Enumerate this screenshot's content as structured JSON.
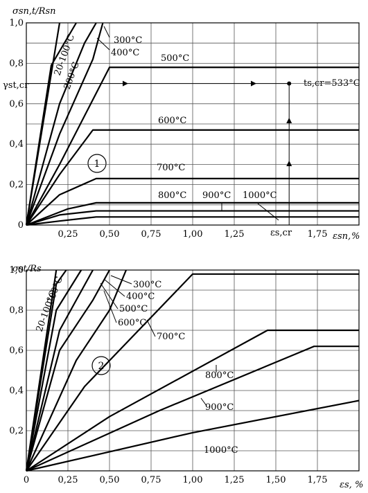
{
  "chart_data": [
    {
      "type": "line",
      "ylabel": "σsn,t/Rsn",
      "xlabel_prefix": "εsn,",
      "xlabel_unit": "%",
      "panel_label": "1",
      "xlim": [
        0,
        2.0
      ],
      "ylim": [
        0,
        1.0
      ],
      "x_ticks": [
        0.25,
        0.5,
        0.75,
        1.0,
        1.25,
        1.75
      ],
      "x_tick_labels": [
        "0,25",
        "0,50",
        "0,75",
        "1,00",
        "1,25",
        "1,75"
      ],
      "x_special_label": "εs,cr",
      "x_special_value": 1.5,
      "y_ticks": [
        0,
        0.2,
        0.4,
        0.6,
        0.8,
        1.0
      ],
      "y_tick_labels": [
        "0",
        "0,2",
        "0,4",
        "0,6",
        "0,8",
        "1,0"
      ],
      "y_special_label": "γst,cr",
      "y_special_value": 0.7,
      "critical_point_label": "ts,cr=533°C",
      "critical_point": [
        1.58,
        0.7
      ],
      "series": [
        {
          "name": "20-100°C",
          "x": [
            0,
            0.2
          ],
          "y": [
            0,
            1.0
          ]
        },
        {
          "name": "200°C",
          "x": [
            0,
            0.15,
            0.3
          ],
          "y": [
            0,
            0.79,
            1.0
          ]
        },
        {
          "name": "300°C",
          "x": [
            0,
            0.2,
            0.35,
            0.42
          ],
          "y": [
            0,
            0.6,
            0.9,
            1.0
          ]
        },
        {
          "name": "400°C",
          "x": [
            0,
            0.2,
            0.4,
            0.46
          ],
          "y": [
            0,
            0.45,
            0.82,
            1.0
          ]
        },
        {
          "name": "500°C",
          "x": [
            0,
            0.2,
            0.5,
            2.0
          ],
          "y": [
            0,
            0.3,
            0.78,
            0.78
          ]
        },
        {
          "name": "600°C",
          "x": [
            0,
            0.2,
            0.4,
            2.0
          ],
          "y": [
            0,
            0.25,
            0.47,
            0.47
          ]
        },
        {
          "name": "700°C",
          "x": [
            0,
            0.2,
            0.42,
            2.0
          ],
          "y": [
            0,
            0.15,
            0.23,
            0.23
          ]
        },
        {
          "name": "800°C",
          "x": [
            0,
            0.25,
            0.42,
            2.0
          ],
          "y": [
            0,
            0.08,
            0.11,
            0.11
          ]
        },
        {
          "name": "900°C",
          "x": [
            0,
            0.2,
            0.42,
            2.0
          ],
          "y": [
            0,
            0.05,
            0.07,
            0.07
          ]
        },
        {
          "name": "1000°C",
          "x": [
            0,
            0.2,
            0.42,
            2.0
          ],
          "y": [
            0,
            0.02,
            0.04,
            0.04
          ]
        }
      ]
    },
    {
      "type": "line",
      "ylabel": "σst/Rs",
      "xlabel_prefix": "εs,",
      "xlabel_unit": "%",
      "panel_label": "2",
      "xlim": [
        0,
        2.0
      ],
      "ylim": [
        0,
        1.0
      ],
      "x_ticks": [
        0,
        0.25,
        0.5,
        0.75,
        1.0,
        1.25,
        1.5,
        1.75
      ],
      "x_tick_labels": [
        "0",
        "0,25",
        "0,50",
        "0,75",
        "1,00",
        "1,25",
        "1,50",
        "1,75"
      ],
      "y_ticks": [
        0.2,
        0.4,
        0.6,
        0.8,
        1.0
      ],
      "y_tick_labels": [
        "0,2",
        "0,4",
        "0,6",
        "0,8",
        "1,0"
      ],
      "series": [
        {
          "name": "20-100°C",
          "x": [
            0,
            0.18
          ],
          "y": [
            0,
            1.0
          ]
        },
        {
          "name": "200°C",
          "x": [
            0,
            0.18,
            0.24
          ],
          "y": [
            0,
            0.93,
            1.0
          ]
        },
        {
          "name": "300°C",
          "x": [
            0,
            0.18,
            0.33
          ],
          "y": [
            0,
            0.8,
            1.0
          ]
        },
        {
          "name": "400°C",
          "x": [
            0,
            0.2,
            0.4
          ],
          "y": [
            0,
            0.7,
            1.0
          ]
        },
        {
          "name": "500°C",
          "x": [
            0,
            0.2,
            0.4,
            0.5
          ],
          "y": [
            0,
            0.6,
            0.85,
            1.0
          ]
        },
        {
          "name": "600°C",
          "x": [
            0,
            0.3,
            0.5,
            0.6
          ],
          "y": [
            0,
            0.55,
            0.8,
            1.0
          ]
        },
        {
          "name": "700°C",
          "x": [
            0,
            0.35,
            1.0,
            2.0
          ],
          "y": [
            0,
            0.42,
            0.98,
            0.98
          ]
        },
        {
          "name": "800°C",
          "x": [
            0,
            0.5,
            1.45,
            2.0
          ],
          "y": [
            0,
            0.27,
            0.7,
            0.7
          ]
        },
        {
          "name": "900°C",
          "x": [
            0,
            0.8,
            1.73,
            2.0
          ],
          "y": [
            0,
            0.3,
            0.62,
            0.62
          ]
        },
        {
          "name": "1000°C",
          "x": [
            0,
            1.0,
            2.0
          ],
          "y": [
            0,
            0.19,
            0.35
          ]
        }
      ]
    }
  ]
}
